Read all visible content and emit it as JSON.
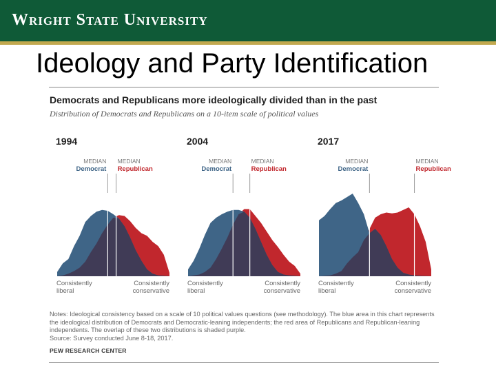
{
  "banner": {
    "text": "Wright State University"
  },
  "slide": {
    "title": "Ideology and Party Identification"
  },
  "chart_data": {
    "type": "area",
    "title": "Democrats and Republicans more ideologically divided than in the past",
    "subtitle": "Distribution of Democrats and Republicans on a 10-item scale of political values",
    "x_axis": {
      "left_label": [
        "Consistently",
        "liberal"
      ],
      "right_label": [
        "Consistently",
        "conservative"
      ],
      "range": [
        -10,
        10
      ]
    },
    "y_axis": {
      "range": [
        0,
        100
      ],
      "visible": false
    },
    "median_label": "MEDIAN",
    "grid": false,
    "colors": {
      "democrat": "#3f6587",
      "republican": "#c1272d",
      "overlap": "#403b56"
    },
    "panels": [
      {
        "year": "1994",
        "x": [
          -10,
          -9,
          -8,
          -7,
          -6,
          -5,
          -4,
          -3,
          -2,
          -1,
          0,
          1,
          2,
          3,
          4,
          5,
          6,
          7,
          8,
          9,
          10
        ],
        "series": [
          {
            "name": "Democrat",
            "median_x": -1,
            "values": [
              5,
              15,
              20,
              35,
              47,
              63,
              70,
              75,
              77,
              76,
              72,
              67,
              58,
              45,
              30,
              18,
              8,
              3,
              1,
              0.5,
              0
            ]
          },
          {
            "name": "Republican",
            "median_x": 0.5,
            "values": [
              0,
              1,
              3,
              6,
              10,
              17,
              28,
              38,
              50,
              60,
              68,
              71,
              70,
              64,
              56,
              50,
              47,
              40,
              35,
              25,
              4
            ]
          }
        ]
      },
      {
        "year": "2004",
        "x": [
          -10,
          -9,
          -8,
          -7,
          -6,
          -5,
          -4,
          -3,
          -2,
          -1,
          0,
          1,
          2,
          3,
          4,
          5,
          6,
          7,
          8,
          9,
          10
        ],
        "series": [
          {
            "name": "Democrat",
            "median_x": -2,
            "values": [
              8,
              18,
              32,
              48,
              62,
              68,
              72,
              75,
              77,
              77,
              75,
              68,
              55,
              40,
              25,
              13,
              5,
              2,
              1,
              0.5,
              0
            ]
          },
          {
            "name": "Republican",
            "median_x": 1,
            "values": [
              0,
              1,
              2,
              5,
              10,
              20,
              32,
              45,
              60,
              72,
              78,
              78,
              70,
              62,
              52,
              42,
              34,
              25,
              17,
              12,
              3
            ]
          }
        ]
      },
      {
        "year": "2017",
        "x": [
          -10,
          -9,
          -8,
          -7,
          -6,
          -5,
          -4,
          -3,
          -2,
          -1,
          0,
          1,
          2,
          3,
          4,
          5,
          6,
          7,
          8,
          9,
          10
        ],
        "series": [
          {
            "name": "Democrat",
            "median_x": -1,
            "values": [
              65,
              70,
              78,
              85,
              88,
              92,
              96,
              85,
              72,
              50,
              55,
              48,
              35,
              20,
              10,
              4,
              2,
              1,
              0.5,
              0.2,
              0
            ]
          },
          {
            "name": "Republican",
            "median_x": 7,
            "values": [
              0,
              0.5,
              1,
              3,
              6,
              15,
              22,
              28,
              42,
              55,
              68,
              72,
              74,
              73,
              74,
              77,
              80,
              72,
              58,
              40,
              8
            ]
          }
        ]
      }
    ],
    "notes": [
      "Notes: Ideological consistency based on a scale of 10 political values questions (see methodology). The blue area in this chart represents the ideological distribution of Democrats and Democratic-leaning independents; the red area of Republicans and Republican-leaning independents. The overlap of these two distributions is shaded purple.",
      "Source: Survey conducted June 8-18, 2017."
    ],
    "source_org": "PEW RESEARCH CENTER"
  }
}
